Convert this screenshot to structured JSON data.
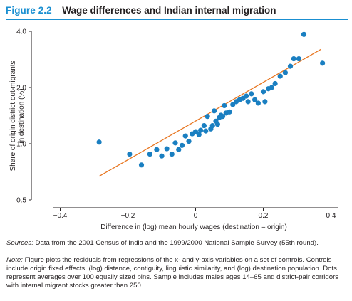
{
  "figure": {
    "label": "Figure 2.2",
    "title": "Wage differences and Indian internal migration"
  },
  "chart_data": {
    "type": "scatter",
    "title": "Wage differences and Indian internal migration",
    "xlabel": "Difference in (log) mean hourly wages (destination – origin)",
    "ylabel_lines": [
      "Share of origin district out-migrants",
      "in destination (%)"
    ],
    "xlim": [
      -0.42,
      0.42
    ],
    "ylim": [
      0.5,
      4.0
    ],
    "y_scale": "log",
    "x_ticks": [
      -0.4,
      -0.2,
      0,
      0.2,
      0.4
    ],
    "x_tick_labels": [
      "−0.4",
      "−0.2",
      "0",
      "0.2",
      "0.4"
    ],
    "y_ticks": [
      0.5,
      1.0,
      2.0,
      4.0
    ],
    "y_tick_labels": [
      "0.5",
      "1.0",
      "2.0",
      "4.0"
    ],
    "grid": false,
    "legend": "none",
    "point_color": "#1a7fc1",
    "fit_color": "#e87722",
    "fit_line": {
      "x": [
        -0.285,
        0.37
      ],
      "y": [
        0.67,
        3.2
      ]
    },
    "points": [
      {
        "x": -0.285,
        "y": 1.02
      },
      {
        "x": -0.195,
        "y": 0.88
      },
      {
        "x": -0.16,
        "y": 0.77
      },
      {
        "x": -0.135,
        "y": 0.88
      },
      {
        "x": -0.115,
        "y": 0.93
      },
      {
        "x": -0.1,
        "y": 0.86
      },
      {
        "x": -0.085,
        "y": 0.94
      },
      {
        "x": -0.07,
        "y": 0.88
      },
      {
        "x": -0.06,
        "y": 1.01
      },
      {
        "x": -0.05,
        "y": 0.93
      },
      {
        "x": -0.04,
        "y": 0.98
      },
      {
        "x": -0.03,
        "y": 1.1
      },
      {
        "x": -0.02,
        "y": 1.03
      },
      {
        "x": -0.01,
        "y": 1.13
      },
      {
        "x": 0.0,
        "y": 1.16
      },
      {
        "x": 0.01,
        "y": 1.12
      },
      {
        "x": 0.015,
        "y": 1.18
      },
      {
        "x": 0.025,
        "y": 1.25
      },
      {
        "x": 0.03,
        "y": 1.17
      },
      {
        "x": 0.035,
        "y": 1.4
      },
      {
        "x": 0.045,
        "y": 1.2
      },
      {
        "x": 0.05,
        "y": 1.25
      },
      {
        "x": 0.055,
        "y": 1.5
      },
      {
        "x": 0.06,
        "y": 1.32
      },
      {
        "x": 0.065,
        "y": 1.27
      },
      {
        "x": 0.07,
        "y": 1.38
      },
      {
        "x": 0.075,
        "y": 1.42
      },
      {
        "x": 0.08,
        "y": 1.4
      },
      {
        "x": 0.085,
        "y": 1.6
      },
      {
        "x": 0.09,
        "y": 1.46
      },
      {
        "x": 0.1,
        "y": 1.48
      },
      {
        "x": 0.11,
        "y": 1.62
      },
      {
        "x": 0.12,
        "y": 1.68
      },
      {
        "x": 0.13,
        "y": 1.72
      },
      {
        "x": 0.14,
        "y": 1.75
      },
      {
        "x": 0.15,
        "y": 1.8
      },
      {
        "x": 0.155,
        "y": 1.68
      },
      {
        "x": 0.165,
        "y": 1.85
      },
      {
        "x": 0.175,
        "y": 1.72
      },
      {
        "x": 0.185,
        "y": 1.65
      },
      {
        "x": 0.2,
        "y": 1.9
      },
      {
        "x": 0.205,
        "y": 1.68
      },
      {
        "x": 0.215,
        "y": 1.97
      },
      {
        "x": 0.225,
        "y": 2.0
      },
      {
        "x": 0.235,
        "y": 2.1
      },
      {
        "x": 0.25,
        "y": 2.3
      },
      {
        "x": 0.265,
        "y": 2.4
      },
      {
        "x": 0.28,
        "y": 2.6
      },
      {
        "x": 0.29,
        "y": 2.85
      },
      {
        "x": 0.305,
        "y": 2.85
      },
      {
        "x": 0.32,
        "y": 3.85
      },
      {
        "x": 0.375,
        "y": 2.7
      }
    ]
  },
  "sources": {
    "lead": "Sources:",
    "text": " Data from the 2001 Census of India and the 1999/2000 National Sample Survey (55th round)."
  },
  "note": {
    "lead": "Note:",
    "text": " Figure plots the residuals from regressions of the x- and y-axis variables on a set of controls. Controls include origin fixed effects, (log) distance, contiguity, linguistic similarity, and (log) destination population. Dots represent averages over 100 equally sized bins. Sample includes males ages 14–65 and district-pair corridors with internal migrant stocks greater than 250."
  }
}
